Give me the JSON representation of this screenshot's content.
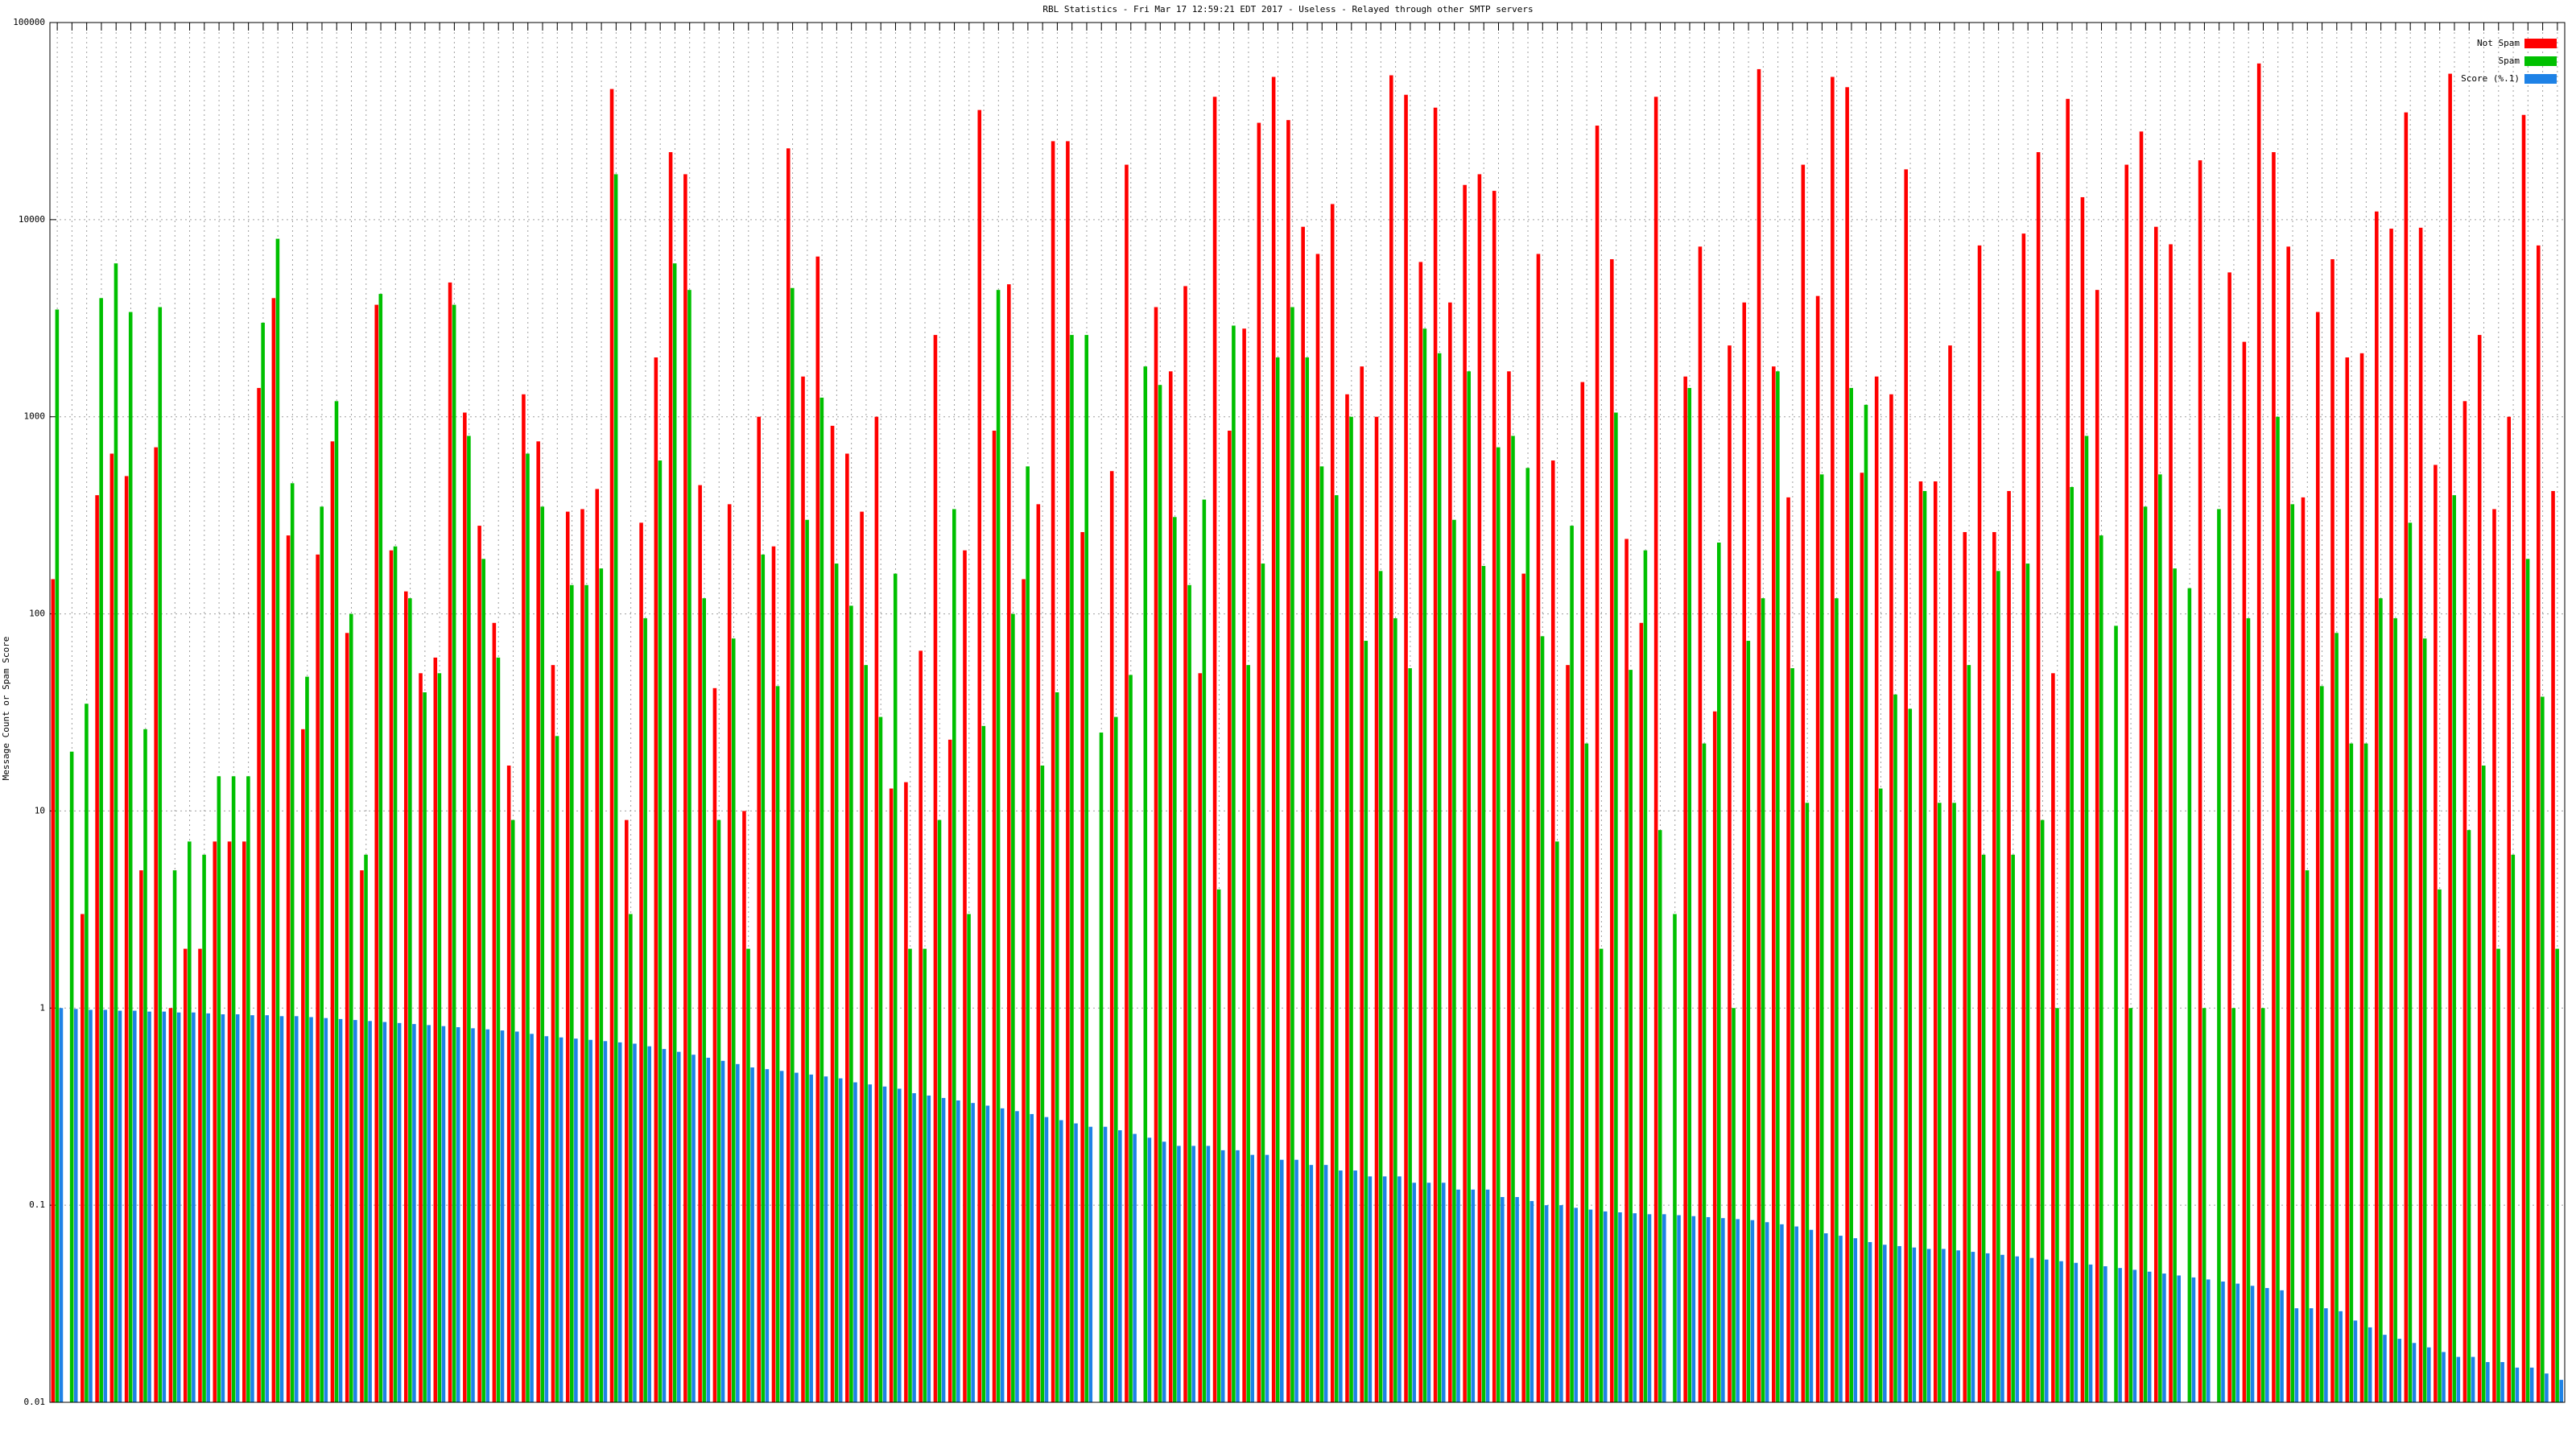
{
  "chart_data": {
    "type": "bar",
    "log_scale": true,
    "grid": true,
    "legend": "top-right",
    "title": "RBL Statistics - Fri Mar 17 12:59:21 EDT 2017 - Useless - Relayed through other SMTP servers",
    "y_label": "Message Count or Spam Score",
    "ylim": [
      0.01,
      100000
    ],
    "yticks": [
      0.01,
      0.1,
      1,
      10,
      100,
      1000,
      10000,
      100000
    ],
    "categories": [
      null,
      null,
      null,
      null,
      null,
      null,
      null,
      null,
      null,
      null,
      null,
      null,
      null,
      null,
      null,
      null,
      null,
      null,
      null,
      null,
      null,
      null,
      null,
      null,
      null,
      null,
      null,
      null,
      null,
      null,
      null,
      null,
      null,
      null,
      null,
      null,
      null,
      null,
      null,
      null,
      null,
      null,
      null,
      null,
      null,
      null,
      null,
      null,
      null,
      null,
      null,
      null,
      null,
      null,
      null,
      null,
      null,
      null,
      null,
      null,
      null,
      null,
      null,
      null,
      null,
      null,
      null,
      null,
      null,
      null,
      null,
      null,
      null,
      null,
      null,
      null,
      null,
      null,
      null,
      null,
      null,
      null,
      null,
      null,
      null,
      null,
      null,
      null,
      null,
      null,
      null,
      null,
      null,
      null,
      null,
      null,
      null,
      null,
      null,
      null,
      null,
      null,
      null,
      null,
      null,
      null,
      null,
      null,
      null,
      null,
      null,
      null,
      null,
      null,
      null,
      null,
      null,
      null,
      null,
      null,
      null,
      null,
      null,
      null,
      null,
      null,
      null,
      null,
      null,
      null,
      null,
      null,
      null,
      null,
      null,
      null,
      null,
      null,
      null,
      null,
      null,
      null,
      null,
      null,
      null,
      null,
      null,
      null,
      null,
      null,
      null,
      null,
      null,
      null,
      null,
      null,
      null,
      null,
      null,
      null,
      null,
      null,
      null,
      null,
      null,
      null,
      null,
      null,
      null,
      null,
      null
    ],
    "series": [
      {
        "name": "Not Spam",
        "color": "#ff0000",
        "values": [
          150,
          null,
          3,
          400,
          650,
          500,
          5,
          700,
          1,
          2,
          2,
          7,
          7,
          7,
          1400,
          4000,
          250,
          26,
          200,
          750,
          80,
          5,
          3700,
          210,
          130,
          50,
          60,
          4800,
          1050,
          280,
          90,
          17,
          1300,
          750,
          55,
          330,
          340,
          430,
          46000,
          9,
          290,
          2000,
          22000,
          17000,
          450,
          42,
          360,
          10,
          1000,
          220,
          23000,
          1600,
          6500,
          900,
          650,
          330,
          1000,
          13,
          14,
          65,
          2600,
          23,
          210,
          36000,
          850,
          4700,
          150,
          360,
          25000,
          25000,
          260,
          null,
          530,
          19000,
          null,
          3600,
          1700,
          4600,
          50,
          42000,
          850,
          2800,
          31000,
          53000,
          32000,
          9200,
          6700,
          12000,
          1300,
          1800,
          1000,
          54000,
          43000,
          6100,
          37000,
          3800,
          15000,
          17000,
          14000,
          1700,
          160,
          6700,
          600,
          55,
          1500,
          30000,
          6300,
          240,
          90,
          42000,
          null,
          1600,
          7300,
          32,
          2300,
          3800,
          58000,
          1800,
          390,
          19000,
          4100,
          53000,
          47000,
          520,
          1600,
          1300,
          18000,
          470,
          470,
          2300,
          260,
          7400,
          260,
          420,
          8500,
          22000,
          50,
          41000,
          13000,
          4400,
          null,
          19000,
          28000,
          9200,
          7500,
          null,
          20000,
          null,
          5400,
          2400,
          62000,
          22000,
          7300,
          390,
          3400,
          6300,
          2000,
          2100,
          11000,
          9000,
          35000,
          9100,
          570,
          55000,
          1200,
          2600,
          340,
          1000,
          34000,
          7400,
          420
        ]
      },
      {
        "name": "Spam",
        "color": "#00c000",
        "values": [
          3500,
          20,
          35,
          4000,
          6000,
          3400,
          26,
          3600,
          5,
          7,
          6,
          15,
          15,
          15,
          3000,
          8000,
          460,
          48,
          350,
          1200,
          100,
          6,
          4200,
          220,
          120,
          40,
          50,
          3700,
          800,
          190,
          60,
          9,
          650,
          350,
          24,
          140,
          140,
          170,
          17000,
          3,
          95,
          600,
          6000,
          4400,
          120,
          9,
          75,
          2,
          200,
          43,
          4500,
          300,
          1250,
          180,
          110,
          55,
          30,
          160,
          2,
          2,
          9,
          340,
          3,
          27,
          4400,
          100,
          560,
          17,
          40,
          2600,
          2600,
          25,
          30,
          49,
          1800,
          1450,
          310,
          140,
          380,
          4,
          2900,
          55,
          180,
          2000,
          3600,
          2000,
          560,
          400,
          1000,
          73,
          165,
          95,
          53,
          2800,
          2100,
          300,
          1700,
          175,
          700,
          800,
          550,
          77,
          7,
          280,
          22,
          2,
          1050,
          52,
          210,
          8,
          3,
          1400,
          22,
          230,
          1,
          73,
          120,
          1700,
          53,
          11,
          510,
          120,
          1400,
          1150,
          13,
          39,
          33,
          420,
          11,
          11,
          55,
          6,
          165,
          6,
          180,
          9,
          1,
          440,
          800,
          250,
          87,
          1,
          350,
          510,
          170,
          135,
          1,
          340,
          1,
          95,
          1,
          1000,
          360,
          5,
          43,
          80,
          22,
          22,
          120,
          95,
          290,
          75,
          4,
          400,
          8,
          17,
          2,
          6,
          190,
          38,
          2
        ]
      },
      {
        "name": "Score (%.1)",
        "color": "#1e82e6",
        "values": [
          1.0,
          0.99,
          0.98,
          0.98,
          0.97,
          0.97,
          0.96,
          0.96,
          0.95,
          0.95,
          0.94,
          0.93,
          0.93,
          0.92,
          0.92,
          0.91,
          0.91,
          0.9,
          0.89,
          0.88,
          0.87,
          0.86,
          0.85,
          0.84,
          0.83,
          0.82,
          0.81,
          0.8,
          0.79,
          0.78,
          0.77,
          0.76,
          0.74,
          0.72,
          0.71,
          0.7,
          0.69,
          0.68,
          0.67,
          0.66,
          0.64,
          0.62,
          0.6,
          0.58,
          0.56,
          0.54,
          0.52,
          0.5,
          0.49,
          0.48,
          0.47,
          0.46,
          0.45,
          0.44,
          0.42,
          0.41,
          0.4,
          0.39,
          0.37,
          0.36,
          0.35,
          0.34,
          0.33,
          0.32,
          0.31,
          0.3,
          0.29,
          0.28,
          0.27,
          0.26,
          0.25,
          0.25,
          0.24,
          0.23,
          0.22,
          0.21,
          0.2,
          0.2,
          0.2,
          0.19,
          0.19,
          0.18,
          0.18,
          0.17,
          0.17,
          0.16,
          0.16,
          0.15,
          0.15,
          0.14,
          0.14,
          0.14,
          0.13,
          0.13,
          0.13,
          0.12,
          0.12,
          0.12,
          0.11,
          0.11,
          0.105,
          0.1,
          0.1,
          0.097,
          0.095,
          0.093,
          0.092,
          0.091,
          0.09,
          0.09,
          0.089,
          0.088,
          0.087,
          0.086,
          0.085,
          0.084,
          0.082,
          0.08,
          0.078,
          0.075,
          0.072,
          0.07,
          0.068,
          0.065,
          0.063,
          0.062,
          0.061,
          0.06,
          0.06,
          0.059,
          0.058,
          0.057,
          0.056,
          0.055,
          0.054,
          0.053,
          0.052,
          0.051,
          0.05,
          0.049,
          0.048,
          0.047,
          0.046,
          0.045,
          0.044,
          0.043,
          0.042,
          0.041,
          0.04,
          0.039,
          0.038,
          0.037,
          0.03,
          0.03,
          0.03,
          0.029,
          0.026,
          0.024,
          0.022,
          0.021,
          0.02,
          0.019,
          0.018,
          0.017,
          0.017,
          0.016,
          0.016,
          0.015,
          0.015,
          0.014,
          0.013
        ]
      }
    ]
  }
}
